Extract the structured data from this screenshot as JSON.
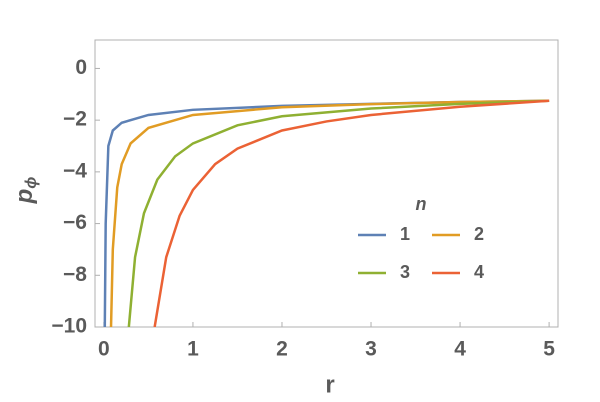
{
  "chart_data": {
    "type": "line",
    "xlabel": "r",
    "ylabel": "p",
    "ylabel_sub": "ϕ",
    "legend_title": "n",
    "xlim": [
      -0.1,
      5.1
    ],
    "ylim": [
      -10,
      1.1
    ],
    "xticks": [
      0,
      1,
      2,
      3,
      4,
      5
    ],
    "yticks": [
      0,
      {
        "value": -2,
        "label": "−2"
      },
      {
        "value": -4,
        "label": "−4"
      },
      {
        "value": -6,
        "label": "−6"
      },
      {
        "value": -8,
        "label": "−8"
      },
      {
        "value": -10,
        "label": "−10"
      }
    ],
    "grid": false,
    "series": [
      {
        "name": "1",
        "color": "#5e81b5",
        "x": [
          0.01,
          0.02,
          0.05,
          0.1,
          0.2,
          0.5,
          1,
          2,
          3,
          4,
          5
        ],
        "values": [
          -10,
          -6,
          -3,
          -2.4,
          -2.1,
          -1.8,
          -1.6,
          -1.45,
          -1.37,
          -1.3,
          -1.25
        ]
      },
      {
        "name": "2",
        "color": "#e19c24",
        "x": [
          0.08,
          0.1,
          0.15,
          0.2,
          0.3,
          0.5,
          1,
          2,
          3,
          4,
          5
        ],
        "values": [
          -10,
          -7,
          -4.6,
          -3.7,
          -2.9,
          -2.3,
          -1.8,
          -1.5,
          -1.38,
          -1.3,
          -1.25
        ]
      },
      {
        "name": "3",
        "color": "#8fb032",
        "x": [
          0.28,
          0.35,
          0.45,
          0.6,
          0.8,
          1,
          1.5,
          2,
          3,
          4,
          5
        ],
        "values": [
          -10,
          -7.3,
          -5.6,
          -4.3,
          -3.4,
          -2.9,
          -2.2,
          -1.85,
          -1.55,
          -1.37,
          -1.25
        ]
      },
      {
        "name": "4",
        "color": "#eb6235",
        "x": [
          0.57,
          0.7,
          0.85,
          1,
          1.25,
          1.5,
          2,
          2.5,
          3,
          4,
          5
        ],
        "values": [
          -10,
          -7.3,
          -5.7,
          -4.7,
          -3.7,
          -3.1,
          -2.4,
          -2.05,
          -1.8,
          -1.48,
          -1.25
        ]
      }
    ]
  }
}
